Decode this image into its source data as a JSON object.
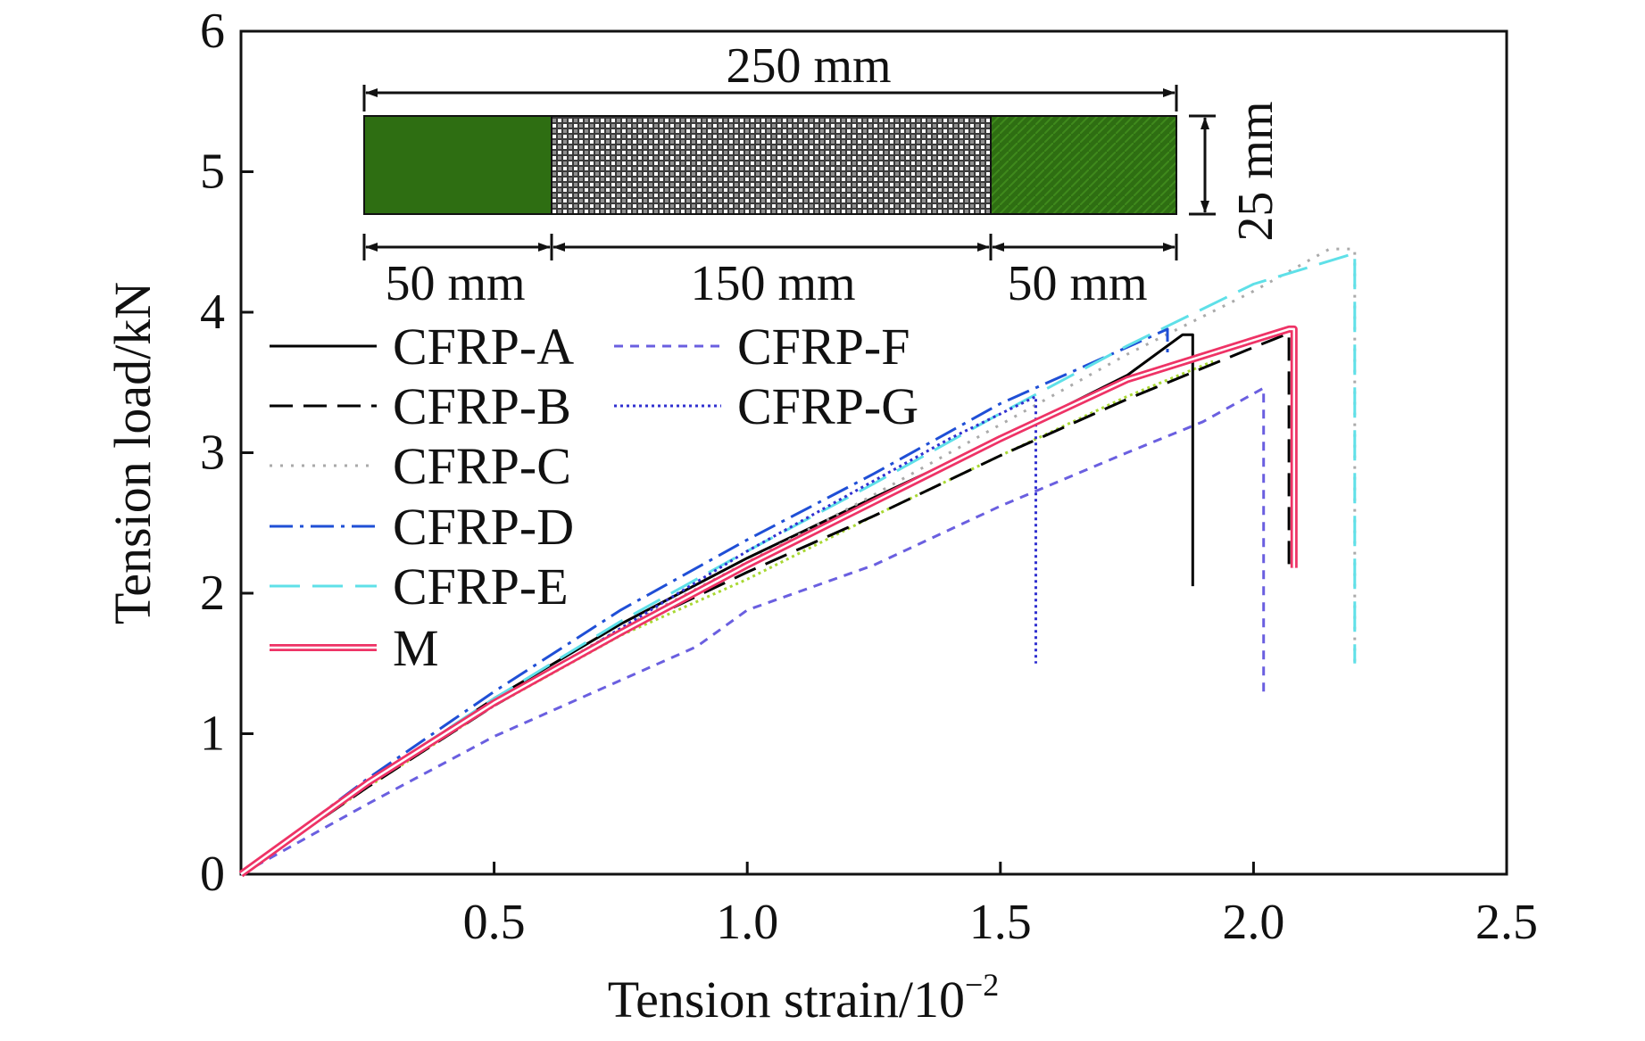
{
  "chart_data": {
    "type": "line",
    "title": "",
    "xlabel": "Tension strain/10",
    "xlabel_sup": "−2",
    "ylabel": "Tension load/kN",
    "xlim": [
      0,
      2.5
    ],
    "ylim": [
      0,
      6
    ],
    "xticks": [
      0.5,
      1.0,
      1.5,
      2.0,
      2.5
    ],
    "xtick_labels": [
      "0.5",
      "1.0",
      "1.5",
      "2.0",
      "2.5"
    ],
    "yticks": [
      0,
      1,
      2,
      3,
      4,
      5,
      6
    ],
    "ytick_labels": [
      "0",
      "1",
      "2",
      "3",
      "4",
      "5",
      "6"
    ],
    "grid": false,
    "legend_position": "middle-left",
    "series": [
      {
        "name": "CFRP-A",
        "color": "#000000",
        "dash": "solid",
        "x": [
          0,
          0.25,
          0.5,
          0.75,
          1.0,
          1.25,
          1.5,
          1.75,
          1.86,
          1.88,
          1.88
        ],
        "y": [
          0,
          0.65,
          1.25,
          1.78,
          2.25,
          2.68,
          3.1,
          3.55,
          3.84,
          3.84,
          2.05
        ]
      },
      {
        "name": "CFRP-B",
        "color": "#000000",
        "dash": "dashed",
        "x": [
          0,
          0.25,
          0.5,
          0.75,
          1.0,
          1.25,
          1.5,
          1.75,
          2.0,
          2.07,
          2.07
        ],
        "y": [
          0,
          0.62,
          1.2,
          1.72,
          2.15,
          2.55,
          2.98,
          3.38,
          3.75,
          3.85,
          2.2
        ]
      },
      {
        "name": "CFRP-C",
        "color": "#aaaaaa",
        "dash": "dotted",
        "x": [
          0,
          0.25,
          0.5,
          0.75,
          1.0,
          1.25,
          1.5,
          1.75,
          2.0,
          2.15,
          2.2,
          2.2
        ],
        "y": [
          0,
          0.65,
          1.22,
          1.75,
          2.22,
          2.7,
          3.2,
          3.7,
          4.15,
          4.45,
          4.45,
          1.5
        ]
      },
      {
        "name": "CFRP-D",
        "color": "#1f4fd6",
        "dash": "dashdot",
        "x": [
          0,
          0.25,
          0.5,
          0.75,
          1.0,
          1.25,
          1.5,
          1.75,
          1.83,
          1.83
        ],
        "y": [
          0,
          0.68,
          1.3,
          1.88,
          2.38,
          2.85,
          3.35,
          3.75,
          3.88,
          3.7
        ]
      },
      {
        "name": "CFRP-E",
        "color": "#5fe0e8",
        "dash": "longdash",
        "x": [
          0,
          0.25,
          0.5,
          0.75,
          1.0,
          1.25,
          1.5,
          1.75,
          2.0,
          2.2,
          2.2
        ],
        "y": [
          0,
          0.66,
          1.25,
          1.8,
          2.3,
          2.78,
          3.28,
          3.76,
          4.2,
          4.42,
          1.5
        ]
      },
      {
        "name": "CFRP-F",
        "color": "#6a5fe0",
        "dash": "shortdash",
        "x": [
          0,
          0.25,
          0.5,
          0.75,
          0.9,
          1.0,
          1.25,
          1.5,
          1.75,
          1.9,
          2.02,
          2.02
        ],
        "y": [
          0,
          0.5,
          0.98,
          1.38,
          1.62,
          1.88,
          2.2,
          2.62,
          3.0,
          3.22,
          3.46,
          1.3
        ]
      },
      {
        "name": "CFRP-G",
        "color": "#3030d0",
        "dash": "densedot",
        "x": [
          0,
          0.25,
          0.5,
          0.75,
          1.0,
          1.25,
          1.4,
          1.57,
          1.57
        ],
        "y": [
          0,
          0.65,
          1.2,
          1.75,
          2.3,
          2.8,
          3.1,
          3.4,
          1.5
        ]
      },
      {
        "name": "M",
        "color": "#ee3366",
        "dash": "double",
        "x": [
          0,
          0.25,
          0.5,
          0.75,
          1.0,
          1.25,
          1.5,
          1.75,
          2.07,
          2.08,
          2.08
        ],
        "y": [
          0,
          0.65,
          1.22,
          1.72,
          2.2,
          2.65,
          3.1,
          3.52,
          3.88,
          3.88,
          2.18
        ]
      }
    ],
    "extra_series": [
      {
        "color": "#a8d832",
        "dash": "densedot",
        "x": [
          0,
          0.25,
          0.5,
          0.75,
          1.0,
          1.25,
          1.5,
          1.75,
          1.92
        ],
        "y": [
          0,
          0.62,
          1.2,
          1.7,
          2.1,
          2.55,
          2.98,
          3.4,
          3.65
        ]
      }
    ],
    "inset": {
      "total_label": "250 mm",
      "width_label": "25 mm",
      "segment_labels": [
        "50 mm",
        "150 mm",
        "50 mm"
      ],
      "tab_color": "#2e6e12",
      "gauge_color": "#9a9a9a"
    }
  }
}
